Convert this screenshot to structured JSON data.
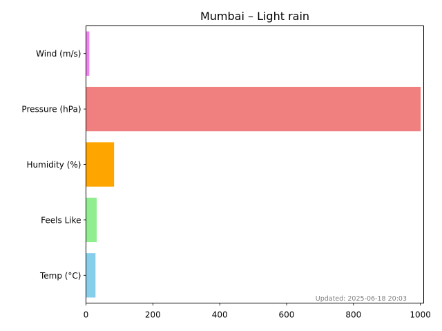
{
  "chart_data": {
    "type": "bar",
    "orientation": "horizontal",
    "title": "Mumbai – Light rain",
    "categories": [
      "Temp (°C)",
      "Feels Like",
      "Humidity (%)",
      "Pressure (hPa)",
      "Wind (m/s)"
    ],
    "values": [
      28.5,
      32,
      84,
      1001,
      10
    ],
    "colors": [
      "#87ceeb",
      "#90ee90",
      "#ffa500",
      "#f08080",
      "#ee82ee"
    ],
    "xlim": [
      0,
      1010
    ],
    "xticks": [
      0,
      200,
      400,
      600,
      800,
      1000
    ],
    "xlabel": "",
    "ylabel": "",
    "grid": false,
    "annotation": "Updated: 2025-06-18 20:03"
  }
}
